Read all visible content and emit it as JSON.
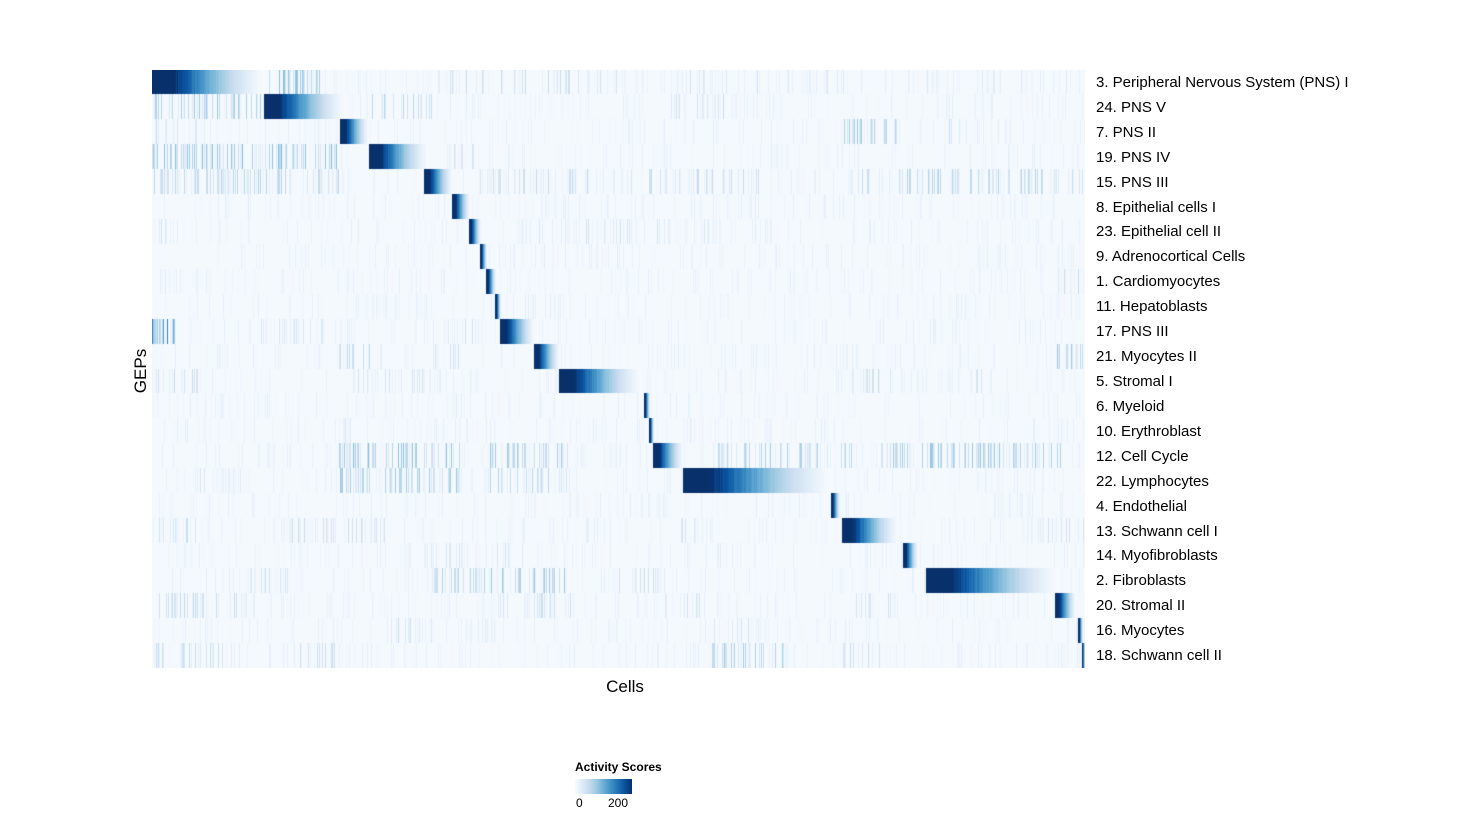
{
  "chart_data": {
    "type": "heatmap",
    "title": "",
    "xlabel": "Cells",
    "ylabel": "GEPs",
    "grid": false,
    "legend": {
      "title": "Activity Scores",
      "position": "bottom-left",
      "min": 0,
      "max": 200,
      "ticks": [
        "0",
        "200"
      ]
    },
    "value_range": [
      0,
      200
    ],
    "colormap": [
      "#f7fbff",
      "#deebf7",
      "#c6dbef",
      "#9ecae1",
      "#6baed6",
      "#4292c6",
      "#2171b5",
      "#08519c",
      "#08306b"
    ],
    "description": "Diagonal heatmap of GEP activity scores across cells; each GEP row has a contiguous block of high-activity cells (block given as [startFraction,endFraction] of the x axis, peak activity score ~200 decaying to the right), plus sparse vertical noise streaks (noise regions given as [start,end,density,intensity]).",
    "noise_seed": 42,
    "rows": [
      {
        "label": "3. Peripheral Nervous System (PNS) I",
        "block": [
          0.0,
          0.121
        ],
        "peak": 200,
        "noise": [
          [
            0.125,
            0.18,
            0.5,
            0.35
          ],
          [
            0.3,
            0.5,
            0.18,
            0.2
          ],
          [
            0.55,
            0.75,
            0.12,
            0.15
          ],
          [
            0.8,
            1.0,
            0.1,
            0.12
          ]
        ]
      },
      {
        "label": "24. PNS V",
        "block": [
          0.121,
          0.207
        ],
        "peak": 200,
        "noise": [
          [
            0.0,
            0.118,
            0.4,
            0.3
          ],
          [
            0.23,
            0.3,
            0.3,
            0.25
          ],
          [
            0.55,
            0.62,
            0.2,
            0.18
          ]
        ]
      },
      {
        "label": "7. PNS II",
        "block": [
          0.202,
          0.232
        ],
        "peak": 200,
        "noise": [
          [
            0.0,
            0.05,
            0.2,
            0.18
          ],
          [
            0.74,
            0.8,
            0.5,
            0.3
          ],
          [
            0.85,
            0.9,
            0.2,
            0.15
          ]
        ]
      },
      {
        "label": "19. PNS IV",
        "block": [
          0.233,
          0.296
        ],
        "peak": 200,
        "noise": [
          [
            0.0,
            0.2,
            0.5,
            0.35
          ],
          [
            0.3,
            0.35,
            0.2,
            0.18
          ]
        ]
      },
      {
        "label": "15. PNS III",
        "block": [
          0.292,
          0.322
        ],
        "peak": 200,
        "noise": [
          [
            0.0,
            0.2,
            0.4,
            0.25
          ],
          [
            0.35,
            0.65,
            0.25,
            0.2
          ],
          [
            0.75,
            1.0,
            0.3,
            0.25
          ]
        ]
      },
      {
        "label": "8. Epithelial cells I",
        "block": [
          0.322,
          0.34
        ],
        "peak": 200,
        "noise": [
          [
            0.1,
            0.15,
            0.1,
            0.1
          ],
          [
            0.6,
            0.65,
            0.1,
            0.1
          ]
        ]
      },
      {
        "label": "23. Epithelial cell II",
        "block": [
          0.34,
          0.352
        ],
        "peak": 200,
        "noise": [
          [
            0.005,
            0.02,
            0.3,
            0.2
          ],
          [
            0.38,
            0.62,
            0.15,
            0.15
          ]
        ]
      },
      {
        "label": "9. Adrenocortical Cells",
        "block": [
          0.352,
          0.358
        ],
        "peak": 200,
        "noise": [
          [
            0.37,
            0.5,
            0.1,
            0.1
          ]
        ]
      },
      {
        "label": "1. Cardiomyocytes",
        "block": [
          0.358,
          0.368
        ],
        "peak": 200,
        "noise": [
          [
            0.0,
            0.02,
            0.2,
            0.18
          ],
          [
            0.97,
            1.0,
            0.3,
            0.2
          ]
        ]
      },
      {
        "label": "11. Hepatoblasts",
        "block": [
          0.368,
          0.373
        ],
        "peak": 200,
        "noise": [
          [
            0.4,
            0.45,
            0.1,
            0.1
          ]
        ]
      },
      {
        "label": "17. PNS III",
        "block": [
          0.373,
          0.41
        ],
        "peak": 200,
        "noise": [
          [
            0.0,
            0.025,
            0.8,
            0.55
          ],
          [
            0.1,
            0.2,
            0.2,
            0.15
          ],
          [
            0.3,
            0.35,
            0.2,
            0.15
          ]
        ]
      },
      {
        "label": "21. Myocytes II",
        "block": [
          0.41,
          0.437
        ],
        "peak": 200,
        "noise": [
          [
            0.2,
            0.25,
            0.3,
            0.2
          ],
          [
            0.3,
            0.33,
            0.2,
            0.18
          ],
          [
            0.97,
            1.0,
            0.4,
            0.3
          ]
        ]
      },
      {
        "label": "5. Stromal I",
        "block": [
          0.437,
          0.525
        ],
        "peak": 200,
        "noise": [
          [
            0.0,
            0.05,
            0.3,
            0.2
          ],
          [
            0.2,
            0.3,
            0.2,
            0.15
          ],
          [
            0.75,
            0.8,
            0.3,
            0.2
          ],
          [
            0.85,
            0.9,
            0.2,
            0.15
          ]
        ]
      },
      {
        "label": "6. Myeloid",
        "block": [
          0.528,
          0.533
        ],
        "peak": 200,
        "noise": [
          [
            0.3,
            0.35,
            0.1,
            0.1
          ]
        ]
      },
      {
        "label": "10. Erythroblast",
        "block": [
          0.533,
          0.538
        ],
        "peak": 200,
        "noise": [
          [
            0.2,
            0.22,
            0.2,
            0.15
          ],
          [
            0.55,
            0.6,
            0.1,
            0.1
          ]
        ]
      },
      {
        "label": "12. Cell Cycle",
        "block": [
          0.538,
          0.57
        ],
        "peak": 200,
        "noise": [
          [
            0.2,
            0.33,
            0.5,
            0.35
          ],
          [
            0.36,
            0.45,
            0.4,
            0.3
          ],
          [
            0.6,
            0.75,
            0.35,
            0.28
          ],
          [
            0.78,
            0.98,
            0.45,
            0.32
          ]
        ]
      },
      {
        "label": "22. Lymphocytes",
        "block": [
          0.57,
          0.73
        ],
        "peak": 200,
        "noise": [
          [
            0.05,
            0.1,
            0.2,
            0.15
          ],
          [
            0.2,
            0.33,
            0.5,
            0.3
          ],
          [
            0.36,
            0.45,
            0.3,
            0.25
          ]
        ]
      },
      {
        "label": "4. Endothelial",
        "block": [
          0.728,
          0.737
        ],
        "peak": 200,
        "noise": [
          [
            0.45,
            0.5,
            0.1,
            0.1
          ],
          [
            0.9,
            0.95,
            0.1,
            0.1
          ]
        ]
      },
      {
        "label": "13. Schwann cell I",
        "block": [
          0.74,
          0.8
        ],
        "peak": 200,
        "noise": [
          [
            0.0,
            0.05,
            0.3,
            0.2
          ],
          [
            0.15,
            0.25,
            0.3,
            0.2
          ],
          [
            0.55,
            0.6,
            0.2,
            0.15
          ],
          [
            0.95,
            1.0,
            0.2,
            0.15
          ]
        ]
      },
      {
        "label": "14. Myofibroblasts",
        "block": [
          0.806,
          0.82
        ],
        "peak": 200,
        "noise": [
          [
            0.3,
            0.4,
            0.2,
            0.15
          ],
          [
            0.6,
            0.65,
            0.1,
            0.1
          ]
        ]
      },
      {
        "label": "2. Fibroblasts",
        "block": [
          0.83,
          0.973
        ],
        "peak": 200,
        "noise": [
          [
            0.1,
            0.15,
            0.2,
            0.15
          ],
          [
            0.3,
            0.45,
            0.4,
            0.3
          ],
          [
            0.5,
            0.55,
            0.3,
            0.2
          ]
        ]
      },
      {
        "label": "20. Stromal II",
        "block": [
          0.968,
          0.99
        ],
        "peak": 200,
        "noise": [
          [
            0.0,
            0.1,
            0.3,
            0.2
          ],
          [
            0.35,
            0.45,
            0.3,
            0.2
          ],
          [
            0.55,
            0.6,
            0.2,
            0.15
          ],
          [
            0.75,
            0.8,
            0.2,
            0.15
          ]
        ]
      },
      {
        "label": "16. Myocytes",
        "block": [
          0.993,
          0.997
        ],
        "peak": 200,
        "noise": [
          [
            0.25,
            0.3,
            0.3,
            0.2
          ],
          [
            0.6,
            0.65,
            0.2,
            0.15
          ]
        ]
      },
      {
        "label": "18. Schwann cell II",
        "block": [
          0.997,
          1.0
        ],
        "peak": 200,
        "noise": [
          [
            0.0,
            0.1,
            0.3,
            0.2
          ],
          [
            0.15,
            0.2,
            0.3,
            0.2
          ],
          [
            0.6,
            0.68,
            0.4,
            0.28
          ],
          [
            0.74,
            0.78,
            0.3,
            0.2
          ]
        ]
      }
    ]
  }
}
